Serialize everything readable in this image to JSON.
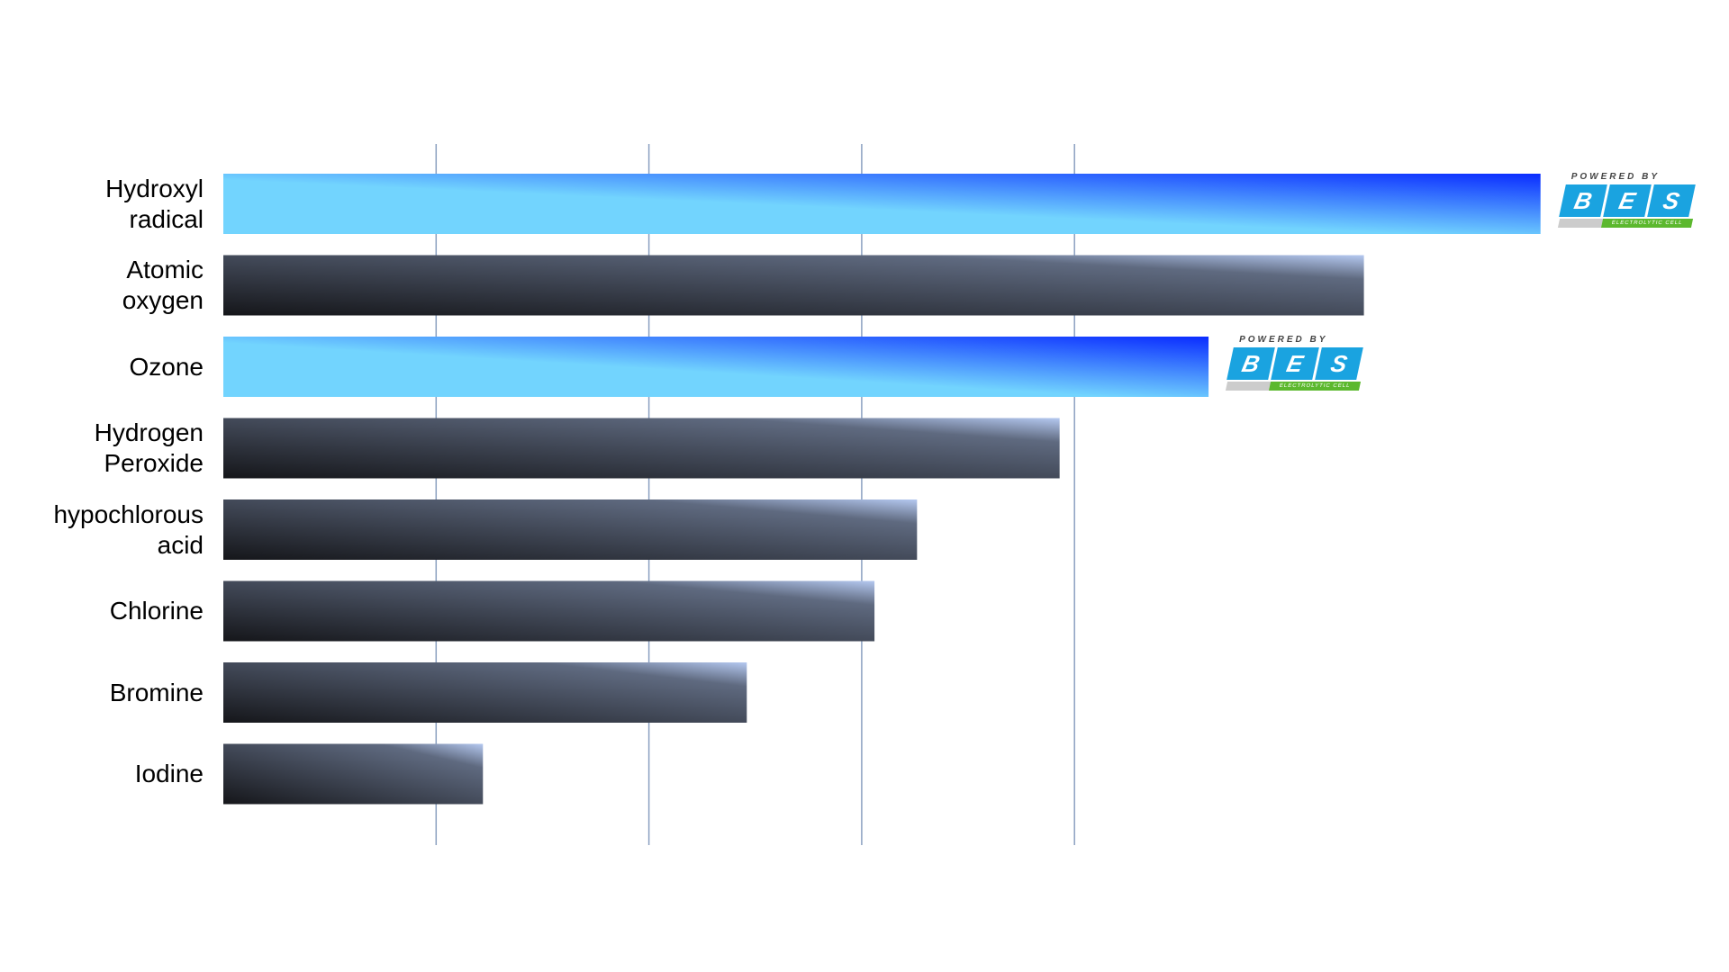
{
  "chart_data": {
    "type": "bar",
    "orientation": "horizontal",
    "title": "",
    "xlabel": "",
    "ylabel": "",
    "grid": "vertical gridlines, no tick labels",
    "gridlines": [
      1,
      2,
      3,
      4
    ],
    "xlim": [
      0,
      6.6
    ],
    "categories": [
      "Hydroxyl\nradical",
      "Atomic\noxygen",
      "Ozone",
      "Hydrogen\nPeroxide",
      "hypochlorous\nacid",
      "Chlorine",
      "Bromine",
      "Iodine"
    ],
    "values": [
      6.19,
      5.36,
      4.63,
      3.93,
      3.26,
      3.06,
      2.46,
      1.22
    ],
    "bar_styles": [
      "blue",
      "dark",
      "blue",
      "dark",
      "dark",
      "dark",
      "dark",
      "dark"
    ],
    "highlight_logo_on": [
      0,
      2
    ]
  },
  "colors": {
    "blue_start": "#72d4fe",
    "blue_end": "#0a2cff",
    "dark_start": "#15161a",
    "dark_end": "#a9bde6",
    "grid": "#8aa0c0"
  },
  "logo": {
    "top": "POWERED BY",
    "letters": [
      "B",
      "E",
      "S"
    ],
    "bottom": "ELECTROLYTIC CELL"
  }
}
